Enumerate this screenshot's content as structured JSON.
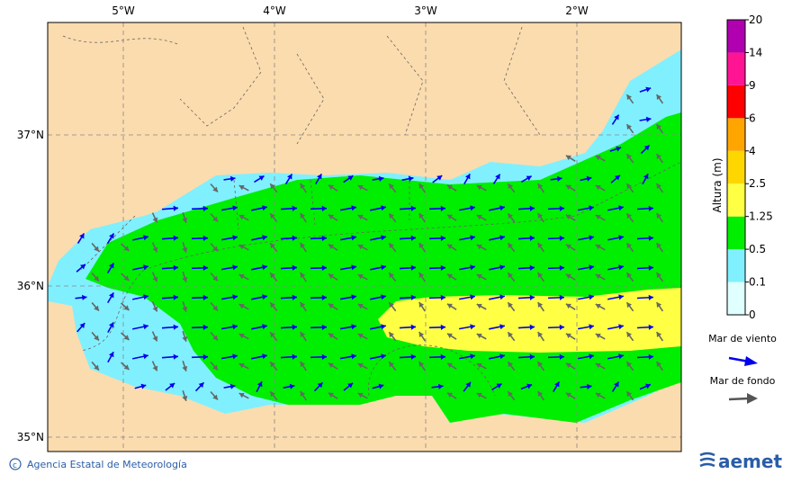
{
  "map": {
    "lon_labels": [
      "5°W",
      "4°W",
      "3°W",
      "2°W"
    ],
    "lat_labels": [
      "37°N",
      "36°N",
      "35°N"
    ]
  },
  "colorbar": {
    "title": "Altura (m)",
    "ticks": [
      "0",
      "0.1",
      "0.5",
      "1.25",
      "2.5",
      "4",
      "6",
      "9",
      "14",
      "20"
    ]
  },
  "legend": {
    "wind": "Mar de viento",
    "swell": "Mar de fondo"
  },
  "footer": {
    "credit": "Agencia Estatal de Meteorología",
    "logo": "aemet"
  }
}
